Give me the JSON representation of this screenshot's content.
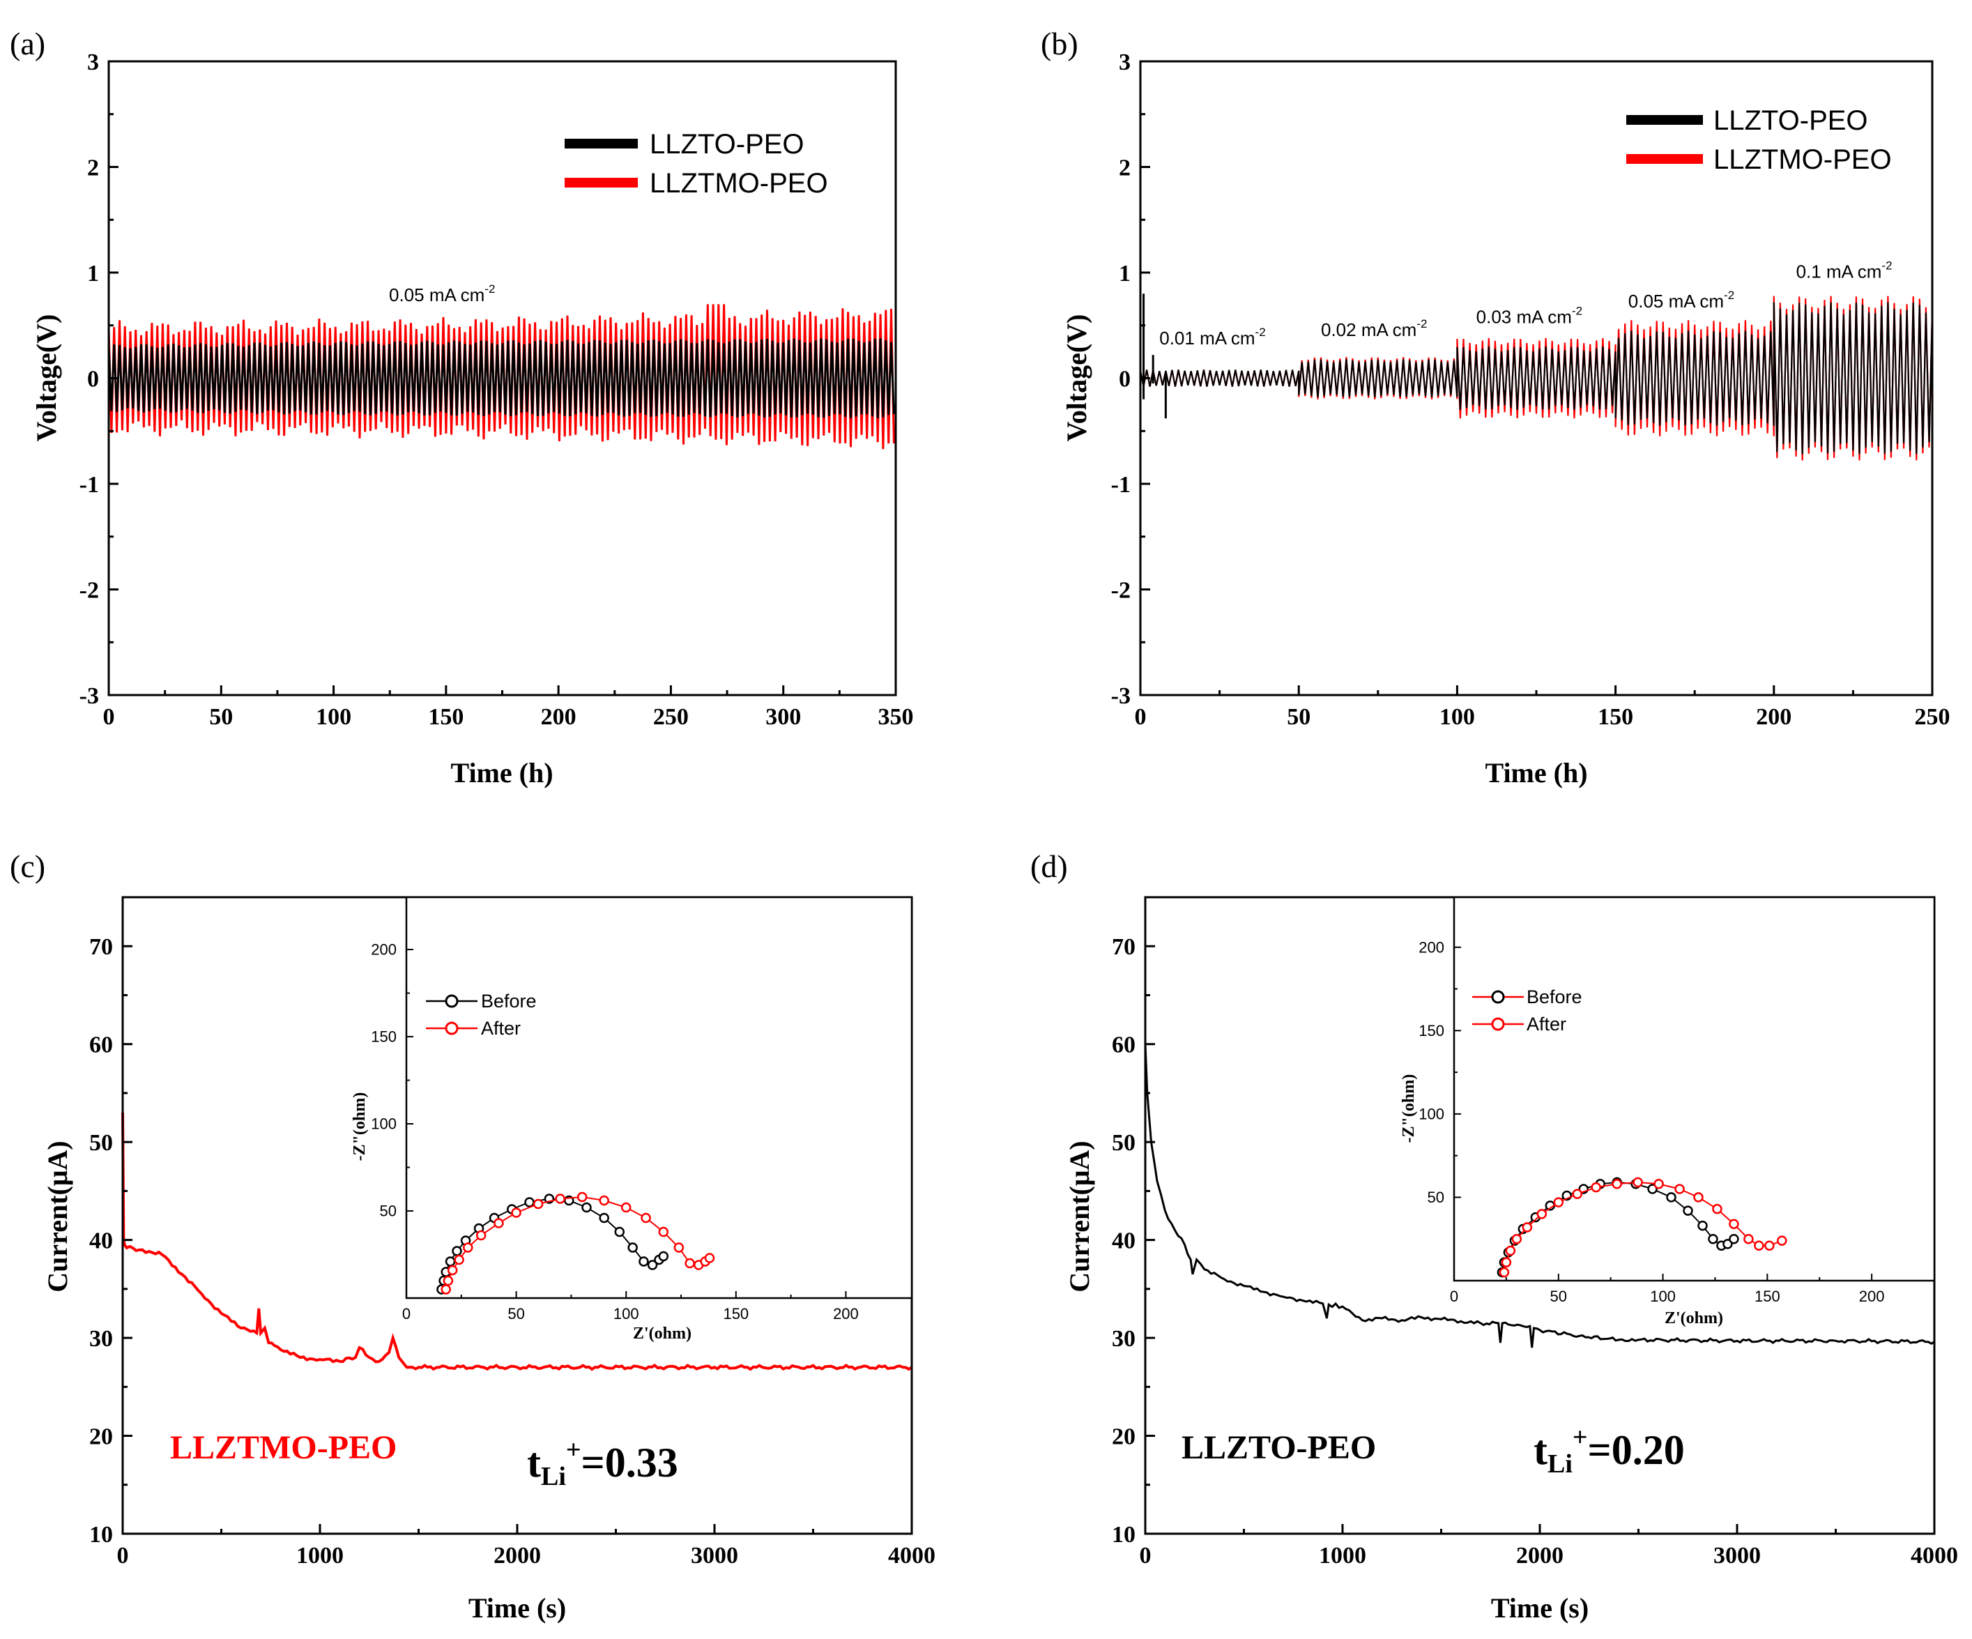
{
  "colors": {
    "black_series": "#000000",
    "red_series": "#ff0000",
    "axis": "#000000"
  },
  "chart_data": [
    {
      "panel": "(a)",
      "type": "line",
      "xlabel": "Time (h)",
      "ylabel": "Voltage(V)",
      "xlim": [
        0,
        350
      ],
      "ylim": [
        -3,
        3
      ],
      "xticks": [
        "0",
        "50",
        "100",
        "150",
        "200",
        "250",
        "300",
        "350"
      ],
      "yticks": [
        "-3",
        "-2",
        "-1",
        "0",
        "1",
        "2",
        "3"
      ],
      "legend": [
        "LLZTO-PEO",
        "LLZTMO-PEO"
      ],
      "annotation": {
        "text": "0.05 mA cm",
        "sup": "-2",
        "x": 135,
        "y": 0.77
      },
      "series": [
        {
          "name": "LLZTO-PEO",
          "color": "#000000",
          "envelope": [
            {
              "x": 0,
              "amp": 0.3
            },
            {
              "x": 100,
              "amp": 0.33
            },
            {
              "x": 350,
              "amp": 0.36
            }
          ]
        },
        {
          "name": "LLZTMO-PEO",
          "color": "#ff0000",
          "envelope": [
            {
              "x": 0,
              "amp": 0.47
            },
            {
              "x": 150,
              "amp": 0.5
            },
            {
              "x": 350,
              "amp": 0.6
            }
          ],
          "spike": {
            "x": 268,
            "y": 0.7
          }
        }
      ]
    },
    {
      "panel": "(b)",
      "type": "line",
      "xlabel": "Time (h)",
      "ylabel": "Voltage(V)",
      "xlim": [
        0,
        250
      ],
      "ylim": [
        -3,
        3
      ],
      "xticks": [
        "0",
        "50",
        "100",
        "150",
        "200",
        "250"
      ],
      "yticks": [
        "-3",
        "-2",
        "-1",
        "0",
        "1",
        "2",
        "3"
      ],
      "legend": [
        "LLZTO-PEO",
        "LLZTMO-PEO"
      ],
      "annotations": [
        {
          "text": "0.01 mA cm",
          "sup": "-2",
          "x": 6,
          "y": 0.32
        },
        {
          "text": "0.02 mA cm",
          "sup": "-2",
          "x": 57,
          "y": 0.4
        },
        {
          "text": "0.03 mA cm",
          "sup": "-2",
          "x": 106,
          "y": 0.52
        },
        {
          "text": "0.05 mA cm",
          "sup": "-2",
          "x": 154,
          "y": 0.67
        },
        {
          "text": "0.1 mA cm",
          "sup": "-2",
          "x": 207,
          "y": 0.95
        }
      ],
      "steps": [
        {
          "start": 0,
          "end": 50,
          "black_amp": 0.08,
          "red_amp": 0.08
        },
        {
          "start": 50,
          "end": 100,
          "black_amp": 0.18,
          "red_amp": 0.2
        },
        {
          "start": 100,
          "end": 150,
          "black_amp": 0.3,
          "red_amp": 0.38
        },
        {
          "start": 150,
          "end": 200,
          "black_amp": 0.45,
          "red_amp": 0.55
        },
        {
          "start": 200,
          "end": 250,
          "black_amp": 0.72,
          "red_amp": 0.78
        }
      ]
    },
    {
      "panel": "(c)",
      "type": "line",
      "xlabel": "Time (s)",
      "ylabel": "Current(μA)",
      "xlim": [
        0,
        4000
      ],
      "ylim": [
        10,
        75
      ],
      "xticks": [
        "0",
        "1000",
        "2000",
        "3000",
        "4000"
      ],
      "yticks": [
        "10",
        "20",
        "30",
        "40",
        "50",
        "60",
        "70"
      ],
      "sample_label": "LLZTMO-PEO",
      "transference": {
        "prefix": "t",
        "sub": "Li",
        "sup": "+",
        "value": "=0.33"
      },
      "series": [
        {
          "name": "LLZTMO-PEO",
          "color": "#ff0000",
          "x": [
            0,
            5,
            10,
            20,
            100,
            200,
            300,
            400,
            500,
            600,
            680,
            690,
            700,
            720,
            740,
            800,
            900,
            1000,
            1100,
            1180,
            1200,
            1250,
            1300,
            1350,
            1370,
            1400,
            1440,
            1500,
            2000,
            3000,
            4000
          ],
          "y": [
            53,
            40,
            39.5,
            39.2,
            39,
            38.5,
            36.5,
            34.5,
            32.5,
            31,
            30.5,
            33,
            30.5,
            31,
            29.5,
            28.8,
            28,
            27.8,
            27.6,
            28,
            29,
            28,
            27.6,
            28.5,
            30,
            28,
            27,
            27,
            27,
            27,
            27
          ]
        }
      ],
      "inset": {
        "type": "scatter",
        "xlabel": "Z'(ohm)",
        "ylabel": "-Z\"(ohm)",
        "xlim": [
          0,
          230
        ],
        "ylim": [
          0,
          230
        ],
        "xticks": [
          "0",
          "50",
          "100",
          "150",
          "200"
        ],
        "yticks": [
          "50",
          "100",
          "150",
          "200"
        ],
        "legend": [
          "Before",
          "After"
        ],
        "series": [
          {
            "name": "Before",
            "color": "#000000",
            "x": [
              16,
              17,
              18,
              20,
              23,
              27,
              33,
              40,
              48,
              56,
              65,
              74,
              82,
              90,
              97,
              103,
              108,
              112,
              115,
              117
            ],
            "y": [
              5,
              10,
              15,
              21,
              27,
              33,
              40,
              46,
              51,
              55,
              57,
              56,
              52,
              46,
              38,
              29,
              21,
              19,
              22,
              24
            ]
          },
          {
            "name": "After",
            "color": "#ff0000",
            "x": [
              18,
              19,
              21,
              24,
              28,
              34,
              42,
              50,
              60,
              70,
              80,
              90,
              100,
              109,
              117,
              124,
              129,
              133,
              136,
              138
            ],
            "y": [
              5,
              10,
              16,
              22,
              29,
              36,
              43,
              49,
              54,
              57,
              58,
              56,
              52,
              46,
              38,
              29,
              20,
              19,
              21,
              23
            ]
          }
        ]
      }
    },
    {
      "panel": "(d)",
      "type": "line",
      "xlabel": "Time (s)",
      "ylabel": "Current(μA)",
      "xlim": [
        0,
        4000
      ],
      "ylim": [
        10,
        75
      ],
      "xticks": [
        "0",
        "1000",
        "2000",
        "3000",
        "4000"
      ],
      "yticks": [
        "10",
        "20",
        "30",
        "40",
        "50",
        "60",
        "70"
      ],
      "sample_label": "LLZTO-PEO",
      "transference": {
        "prefix": "t",
        "sub": "Li",
        "sup": "+",
        "value": "=0.20"
      },
      "series": [
        {
          "name": "LLZTO-PEO",
          "color": "#000000",
          "x": [
            0,
            10,
            30,
            60,
            100,
            150,
            200,
            230,
            240,
            260,
            300,
            400,
            500,
            600,
            700,
            800,
            900,
            920,
            930,
            1000,
            1050,
            1100,
            1200,
            1300,
            1400,
            1500,
            1600,
            1700,
            1790,
            1800,
            1810,
            1900,
            1950,
            1960,
            1970,
            2000,
            2200,
            2400,
            2500,
            3000,
            3500,
            4000
          ],
          "y": [
            60,
            55,
            50,
            46,
            43,
            41,
            39.5,
            38,
            36.5,
            38,
            37,
            36,
            35.3,
            34.7,
            34.2,
            33.8,
            33.5,
            32,
            33.4,
            33.2,
            32.5,
            31.8,
            32,
            31.8,
            32.1,
            31.9,
            31.7,
            31.5,
            31.5,
            29.5,
            31.5,
            31.3,
            31.2,
            29,
            31,
            30.8,
            30.2,
            29.8,
            29.8,
            29.7,
            29.7,
            29.6
          ]
        }
      ],
      "inset": {
        "type": "scatter",
        "xlabel": "Z'(ohm)",
        "ylabel": "-Z\"(ohm)",
        "xlim": [
          0,
          230
        ],
        "ylim": [
          0,
          230
        ],
        "xticks": [
          "0",
          "50",
          "100",
          "150",
          "200"
        ],
        "yticks": [
          "50",
          "100",
          "150",
          "200"
        ],
        "legend": [
          "Before",
          "After"
        ],
        "series": [
          {
            "name": "Before",
            "color": "#000000",
            "x": [
              23,
              24,
              26,
              29,
              33,
              39,
              46,
              54,
              62,
              70,
              78,
              87,
              95,
              104,
              112,
              119,
              124,
              128,
              131,
              134
            ],
            "y": [
              5,
              11,
              17,
              24,
              31,
              38,
              45,
              51,
              55,
              58,
              59,
              58,
              55,
              50,
              42,
              33,
              25,
              21,
              22,
              25
            ]
          },
          {
            "name": "After",
            "color": "#ff0000",
            "x": [
              24,
              25,
              27,
              30,
              35,
              42,
              50,
              59,
              68,
              78,
              88,
              98,
              108,
              117,
              126,
              134,
              141,
              146,
              151,
              157
            ],
            "y": [
              5,
              11,
              18,
              25,
              32,
              40,
              47,
              52,
              56,
              58,
              59,
              58,
              55,
              50,
              43,
              34,
              25,
              21,
              21,
              24
            ]
          }
        ]
      }
    }
  ]
}
